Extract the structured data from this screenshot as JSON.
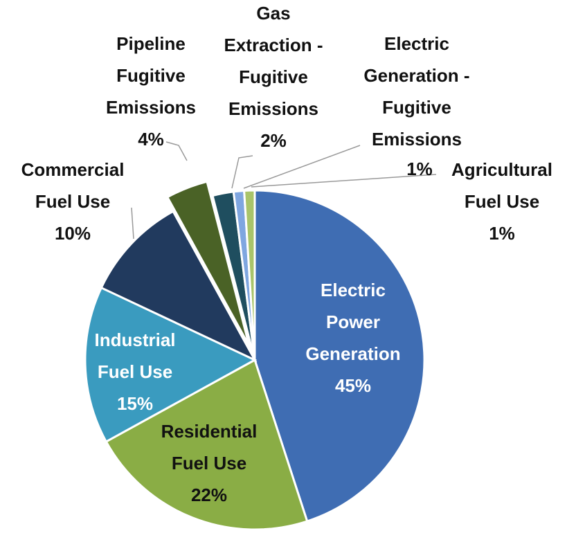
{
  "chart_data": {
    "type": "pie",
    "categories": [
      "Electric Power Generation",
      "Residential Fuel Use",
      "Industrial Fuel Use",
      "Commercial Fuel Use",
      "Pipeline Fugitive Emissions",
      "Gas Extraction - Fugitive Emissions",
      "Electric Generation - Fugitive Emissions",
      "Agricultural Fuel Use"
    ],
    "values": [
      45,
      22,
      15,
      10,
      4,
      2,
      1,
      1
    ],
    "value_labels": [
      "45%",
      "22%",
      "15%",
      "10%",
      "4%",
      "2%",
      "1%",
      "1%"
    ],
    "colors": [
      "#3f6db3",
      "#8aad45",
      "#3a9bbf",
      "#213a5e",
      "#4a6226",
      "#1f4e5f",
      "#7fa6e0",
      "#a9c46a"
    ]
  }
}
